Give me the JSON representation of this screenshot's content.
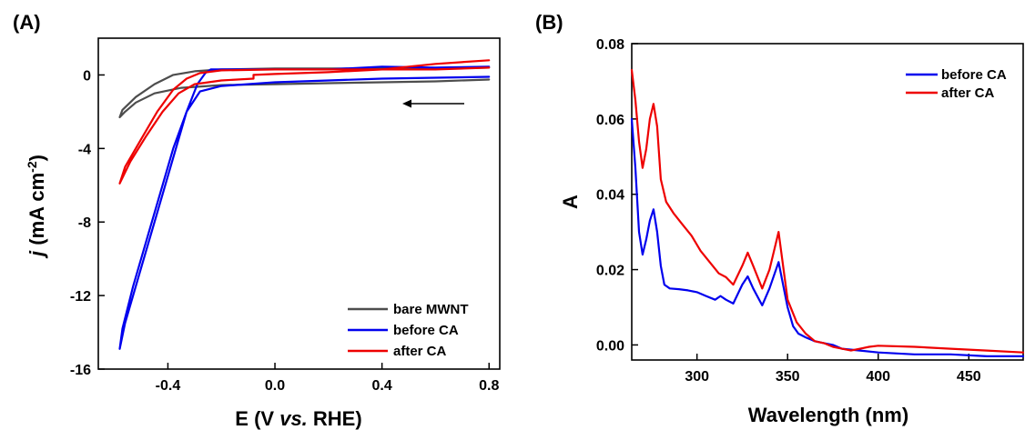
{
  "chart_data": [
    {
      "type": "line",
      "panel_label": "(A)",
      "xlabel": "E (V vs. RHE)",
      "ylabel": "j (mA cm-2)",
      "xlim": [
        -0.66,
        0.84
      ],
      "ylim": [
        -16,
        2
      ],
      "xticks": [
        -0.4,
        0.0,
        0.4,
        0.8
      ],
      "xtick_labels": [
        "-0.4",
        "0.0",
        "0.4",
        "0.8"
      ],
      "yticks": [
        0,
        -4,
        -8,
        -12,
        -16
      ],
      "ytick_labels": [
        "0",
        "-4",
        "-8",
        "-12",
        "-16"
      ],
      "legend_position": "bottom-right",
      "annotation": "arrow pointing left (scan direction)",
      "series": [
        {
          "name": "bare MWNT",
          "color": "#4d4d4d",
          "x": [
            0.8,
            0.6,
            0.4,
            0.2,
            0.0,
            -0.2,
            -0.35,
            -0.45,
            -0.52,
            -0.56,
            -0.58,
            -0.57,
            -0.52,
            -0.45,
            -0.38,
            -0.3,
            -0.2,
            0.0,
            0.2,
            0.4,
            0.6,
            0.8
          ],
          "y": [
            -0.25,
            -0.35,
            -0.4,
            -0.45,
            -0.5,
            -0.55,
            -0.7,
            -1.0,
            -1.5,
            -2.0,
            -2.3,
            -1.9,
            -1.2,
            -0.5,
            0.0,
            0.2,
            0.3,
            0.35,
            0.35,
            0.35,
            0.35,
            0.4
          ]
        },
        {
          "name": "before CA",
          "color": "#0000ee",
          "x": [
            0.8,
            0.6,
            0.4,
            0.2,
            0.0,
            -0.2,
            -0.28,
            -0.33,
            -0.38,
            -0.43,
            -0.48,
            -0.53,
            -0.57,
            -0.58,
            -0.56,
            -0.5,
            -0.44,
            -0.38,
            -0.33,
            -0.29,
            -0.26,
            -0.24,
            -0.2,
            0.0,
            0.2,
            0.4,
            0.6,
            0.8
          ],
          "y": [
            -0.1,
            -0.15,
            -0.2,
            -0.3,
            -0.4,
            -0.6,
            -0.9,
            -2.0,
            -4.0,
            -6.5,
            -9.0,
            -11.5,
            -13.8,
            -14.9,
            -13.5,
            -10.5,
            -7.5,
            -4.5,
            -2.0,
            -0.5,
            0.1,
            0.3,
            0.3,
            0.3,
            0.3,
            0.45,
            0.4,
            0.45
          ]
        },
        {
          "name": "after CA",
          "color": "#ee0000",
          "x": [
            0.8,
            0.6,
            0.4,
            0.2,
            0.0,
            -0.08,
            -0.08,
            -0.2,
            -0.3,
            -0.36,
            -0.42,
            -0.48,
            -0.54,
            -0.58,
            -0.56,
            -0.5,
            -0.44,
            -0.38,
            -0.33,
            -0.28,
            -0.2,
            0.0,
            0.2,
            0.4,
            0.6,
            0.8
          ],
          "y": [
            0.8,
            0.6,
            0.3,
            0.15,
            0.05,
            0.0,
            -0.2,
            -0.3,
            -0.5,
            -1.0,
            -2.0,
            -3.3,
            -4.7,
            -5.9,
            -5.0,
            -3.5,
            -2.0,
            -0.8,
            -0.2,
            0.1,
            0.25,
            0.3,
            0.3,
            0.3,
            0.3,
            0.4
          ]
        }
      ]
    },
    {
      "type": "line",
      "panel_label": "(B)",
      "xlabel": "Wavelength (nm)",
      "ylabel": "A",
      "xlim": [
        264,
        480
      ],
      "ylim": [
        -0.004,
        0.08
      ],
      "xticks": [
        300,
        350,
        400,
        450
      ],
      "xtick_labels": [
        "300",
        "350",
        "400",
        "450"
      ],
      "yticks": [
        0.0,
        0.02,
        0.04,
        0.06,
        0.08
      ],
      "ytick_labels": [
        "0.00",
        "0.02",
        "0.04",
        "0.06",
        "0.08"
      ],
      "legend_position": "top-right",
      "series": [
        {
          "name": "before CA",
          "color": "#0000ee",
          "x": [
            264,
            266,
            268,
            270,
            272,
            274,
            276,
            278,
            280,
            282,
            285,
            290,
            295,
            300,
            305,
            310,
            313,
            316,
            320,
            325,
            328,
            331,
            336,
            340,
            345,
            350,
            353,
            356,
            360,
            365,
            370,
            375,
            380,
            390,
            400,
            420,
            440,
            460,
            480
          ],
          "y": [
            0.06,
            0.047,
            0.03,
            0.024,
            0.028,
            0.033,
            0.036,
            0.03,
            0.021,
            0.016,
            0.015,
            0.0148,
            0.0145,
            0.014,
            0.013,
            0.012,
            0.013,
            0.012,
            0.011,
            0.016,
            0.0182,
            0.015,
            0.0105,
            0.015,
            0.022,
            0.01,
            0.005,
            0.003,
            0.002,
            0.001,
            0.0005,
            0.0,
            -0.001,
            -0.0015,
            -0.002,
            -0.0025,
            -0.0025,
            -0.003,
            -0.003
          ]
        },
        {
          "name": "after CA",
          "color": "#ee0000",
          "x": [
            264,
            266,
            268,
            270,
            272,
            274,
            276,
            278,
            280,
            283,
            287,
            292,
            297,
            302,
            307,
            312,
            316,
            320,
            325,
            328,
            331,
            336,
            340,
            345,
            350,
            355,
            360,
            365,
            370,
            375,
            380,
            385,
            390,
            395,
            400,
            420,
            440,
            460,
            480
          ],
          "y": [
            0.073,
            0.065,
            0.054,
            0.047,
            0.052,
            0.06,
            0.064,
            0.058,
            0.044,
            0.038,
            0.035,
            0.032,
            0.029,
            0.025,
            0.022,
            0.019,
            0.018,
            0.016,
            0.021,
            0.0245,
            0.021,
            0.015,
            0.02,
            0.03,
            0.012,
            0.006,
            0.003,
            0.001,
            0.0005,
            -0.0005,
            -0.001,
            -0.0015,
            -0.001,
            -0.0005,
            -0.0002,
            -0.0005,
            -0.001,
            -0.0015,
            -0.002
          ]
        }
      ]
    }
  ]
}
